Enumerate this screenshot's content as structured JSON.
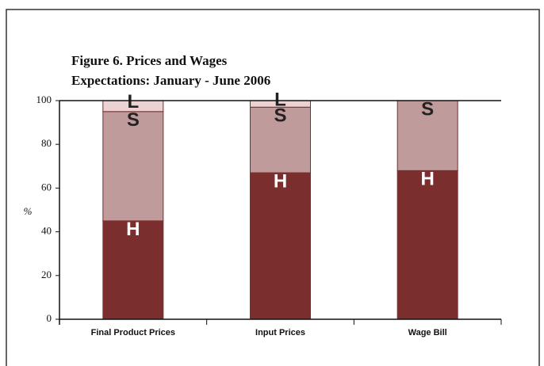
{
  "chart_data": {
    "type": "stacked_bar",
    "title": [
      "Figure 6. Prices and Wages",
      "Expectations: January - June 2006"
    ],
    "y_label": "%",
    "categories": [
      "Final Product Prices",
      "Input Prices",
      "Wage Bill"
    ],
    "series": [
      {
        "name": "H",
        "color": "#7b2e2e",
        "label_color": "#ffffff",
        "values": [
          45,
          67,
          68
        ]
      },
      {
        "name": "S",
        "color": "#c09b9b",
        "label_color": "#222222",
        "values": [
          50,
          30,
          32
        ]
      },
      {
        "name": "L",
        "color": "#ecd3d3",
        "label_color": "#222222",
        "values": [
          5,
          3,
          0
        ]
      }
    ],
    "ylim": [
      0,
      100
    ],
    "yticks": [
      0,
      20,
      40,
      60,
      80,
      100
    ]
  }
}
